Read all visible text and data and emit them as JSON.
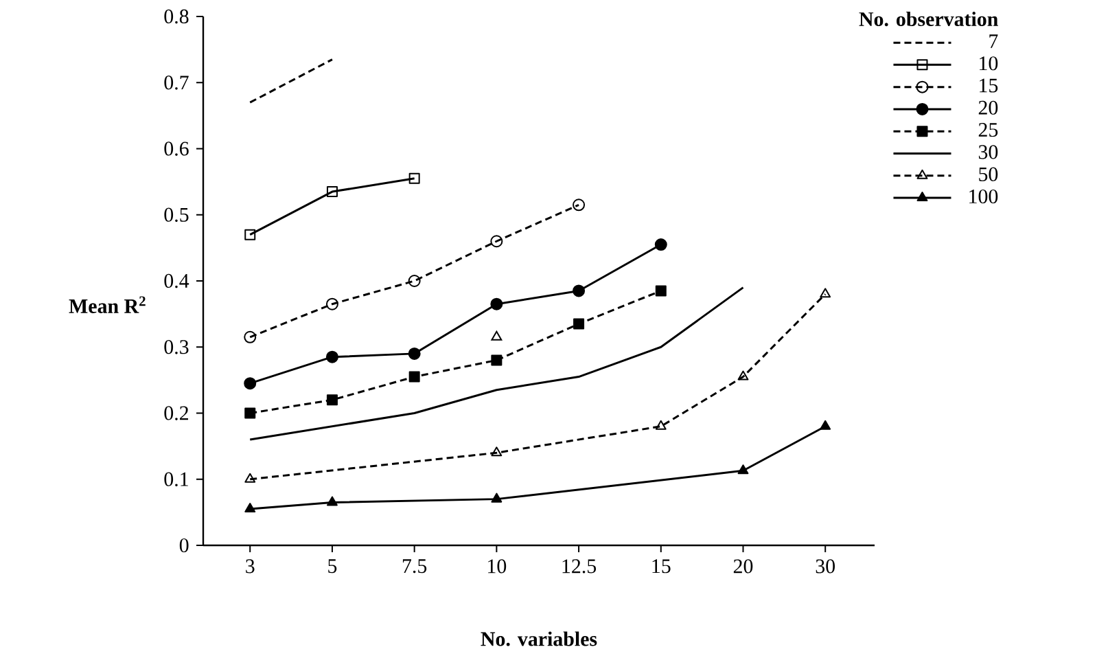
{
  "chart_data": {
    "type": "line",
    "xlabel": "No. variables",
    "ylabel": "Mean R$^{2}$",
    "legend_title": "No. observation",
    "legend": "top right",
    "categories": [
      "3",
      "5",
      "7.5",
      "10",
      "12.5",
      "15",
      "20",
      "30"
    ],
    "ylim": [
      0,
      0.8
    ],
    "yticks": [
      0,
      0.1,
      0.2,
      0.3,
      0.4,
      0.5,
      0.6,
      0.7,
      0.8
    ],
    "grid": false,
    "series": [
      {
        "name": "7",
        "color": "#000000",
        "marker": "none",
        "line_style": "dashed",
        "values": [
          0.67,
          0.735,
          null,
          null,
          null,
          null,
          null,
          null
        ]
      },
      {
        "name": "10",
        "color": "#000000",
        "marker": "square",
        "line_style": "solid",
        "values": [
          0.47,
          0.535,
          0.555,
          null,
          null,
          null,
          null,
          null
        ]
      },
      {
        "name": "15",
        "color": "#000000",
        "marker": "circle",
        "line_style": "dashed",
        "values": [
          0.315,
          0.365,
          0.4,
          0.46,
          0.515,
          null,
          null,
          null
        ]
      },
      {
        "name": "20",
        "color": "#000000",
        "marker": "circle",
        "line_style": "solid",
        "values": [
          0.245,
          0.285,
          0.29,
          0.365,
          0.385,
          0.455,
          null,
          null
        ]
      },
      {
        "name": "25",
        "color": "#000000",
        "marker": "square",
        "line_style": "dashed",
        "values": [
          0.2,
          0.22,
          0.255,
          0.28,
          0.335,
          0.385,
          null,
          null
        ]
      },
      {
        "name": "30",
        "color": "#000000",
        "marker": "none",
        "line_style": "solid",
        "values": [
          0.16,
          0.18,
          0.2,
          0.235,
          0.255,
          0.3,
          0.39,
          null
        ]
      },
      {
        "name": "50",
        "color": "#000000",
        "marker": "triangle",
        "line_style": "dashed",
        "values": [
          0.1,
          null,
          null,
          0.14,
          null,
          0.18,
          0.255,
          0.38
        ]
      },
      {
        "name": "100",
        "color": "#000000",
        "marker": "triangle",
        "line_style": "solid",
        "values": [
          0.055,
          0.065,
          null,
          0.07,
          null,
          null,
          0.113,
          0.18
        ]
      },
      {
        "type": "scatter",
        "color": "#000000",
        "marker": "triangle",
        "values": [
          null,
          null,
          null,
          0.315,
          null,
          null,
          null,
          null
        ]
      }
    ]
  }
}
